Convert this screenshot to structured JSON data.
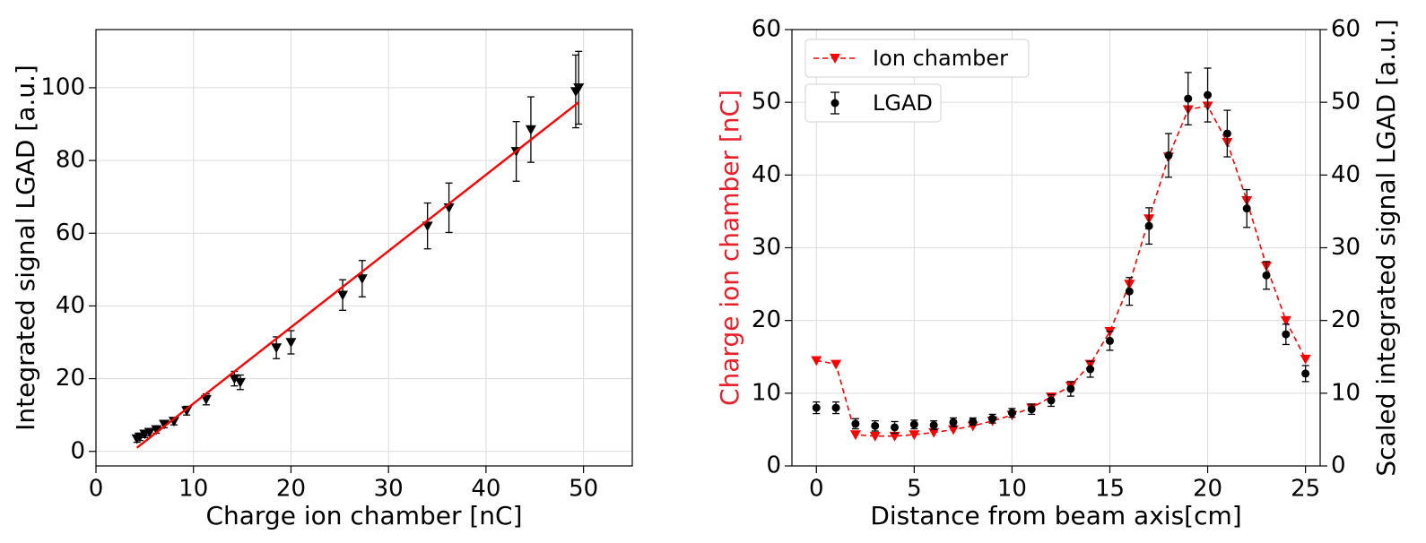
{
  "chart_data": [
    {
      "type": "scatter",
      "x_label": "Charge ion chamber [nC]",
      "y_label": "Integrated signal LGAD [a.u.]",
      "xlim": [
        0,
        55
      ],
      "xticks": [
        0,
        10,
        20,
        30,
        40,
        50
      ],
      "ylim": [
        -4,
        116
      ],
      "yticks": [
        0,
        20,
        40,
        60,
        80,
        100
      ],
      "grid": true,
      "series": [
        {
          "color": "#000000",
          "marker": "triangle-down",
          "x": [
            4.2,
            4.5,
            5.0,
            5.5,
            6.2,
            7.0,
            8.0,
            9.3,
            11.3,
            14.2,
            14.8,
            18.5,
            20.0,
            25.3,
            27.3,
            34.0,
            36.2,
            43.1,
            44.6,
            49.2,
            49.5
          ],
          "values": [
            3.5,
            4.0,
            4.8,
            5.3,
            6.0,
            7.5,
            8.3,
            11.2,
            14.3,
            20.0,
            19.0,
            28.5,
            30.0,
            43.0,
            47.5,
            62.0,
            67.0,
            82.5,
            88.5,
            99.0,
            100.0
          ],
          "errors": [
            1.0,
            1.0,
            1.0,
            1.0,
            1.0,
            1.0,
            1.0,
            1.2,
            1.5,
            2.0,
            2.0,
            3.0,
            3.2,
            4.2,
            5.0,
            6.3,
            6.8,
            8.2,
            9.0,
            10.0,
            10.0
          ]
        },
        {
          "color": "#ff0000",
          "linestyle": "solid",
          "x": [
            4.2,
            49.5
          ],
          "values": [
            1.0,
            96.0
          ]
        }
      ]
    },
    {
      "type": "line",
      "x_label": "Distance from beam axis[cm]",
      "y_label": "Charge ion chamber [nC]",
      "y_label_color": "#e8202a",
      "y2_label": "Scaled integrated signal LGAD [a.u.]",
      "xlim": [
        -1.25,
        25.75
      ],
      "xticks": [
        0,
        5,
        10,
        15,
        20,
        25
      ],
      "ylim": [
        0,
        60
      ],
      "yticks": [
        0,
        10,
        20,
        30,
        40,
        50,
        60
      ],
      "y2lim": [
        0,
        60
      ],
      "y2ticks": [
        0,
        10,
        20,
        30,
        40,
        50,
        60
      ],
      "grid": true,
      "legend": "upper-left",
      "series": [
        {
          "name": "Ion chamber",
          "color": "#ff0000",
          "marker": "triangle-down",
          "linestyle": "dashed",
          "x": [
            0,
            1,
            2,
            3,
            4,
            5,
            6,
            7,
            8,
            9,
            10,
            11,
            12,
            13,
            14,
            15,
            16,
            17,
            18,
            19,
            20,
            21,
            22,
            23,
            24,
            25
          ],
          "values": [
            14.5,
            14.0,
            4.3,
            4.1,
            4.1,
            4.3,
            4.6,
            5.0,
            5.5,
            6.2,
            7.0,
            8.0,
            9.5,
            11.0,
            14.0,
            18.5,
            25.0,
            34.0,
            42.5,
            49.0,
            49.5,
            44.5,
            36.5,
            27.5,
            20.0,
            14.7
          ]
        },
        {
          "name": "LGAD",
          "color": "#000000",
          "marker": "circle",
          "axis": "y2",
          "x": [
            0,
            1,
            2,
            3,
            4,
            5,
            6,
            7,
            8,
            9,
            10,
            11,
            12,
            13,
            14,
            15,
            16,
            17,
            18,
            19,
            20,
            21,
            22,
            23,
            24,
            25
          ],
          "values": [
            8.0,
            8.0,
            5.8,
            5.5,
            5.3,
            5.7,
            5.6,
            6.0,
            6.1,
            6.5,
            7.3,
            7.8,
            9.0,
            10.6,
            13.3,
            17.2,
            24.0,
            33.0,
            42.7,
            50.5,
            51.0,
            45.7,
            35.4,
            26.2,
            18.1,
            12.7
          ],
          "errors": [
            0.8,
            0.8,
            0.7,
            0.7,
            0.8,
            0.6,
            0.6,
            0.6,
            0.5,
            0.6,
            0.6,
            0.7,
            0.8,
            1.0,
            1.1,
            1.3,
            1.9,
            2.5,
            3.0,
            3.6,
            3.7,
            3.2,
            2.6,
            1.9,
            1.4,
            1.1
          ]
        }
      ]
    }
  ]
}
